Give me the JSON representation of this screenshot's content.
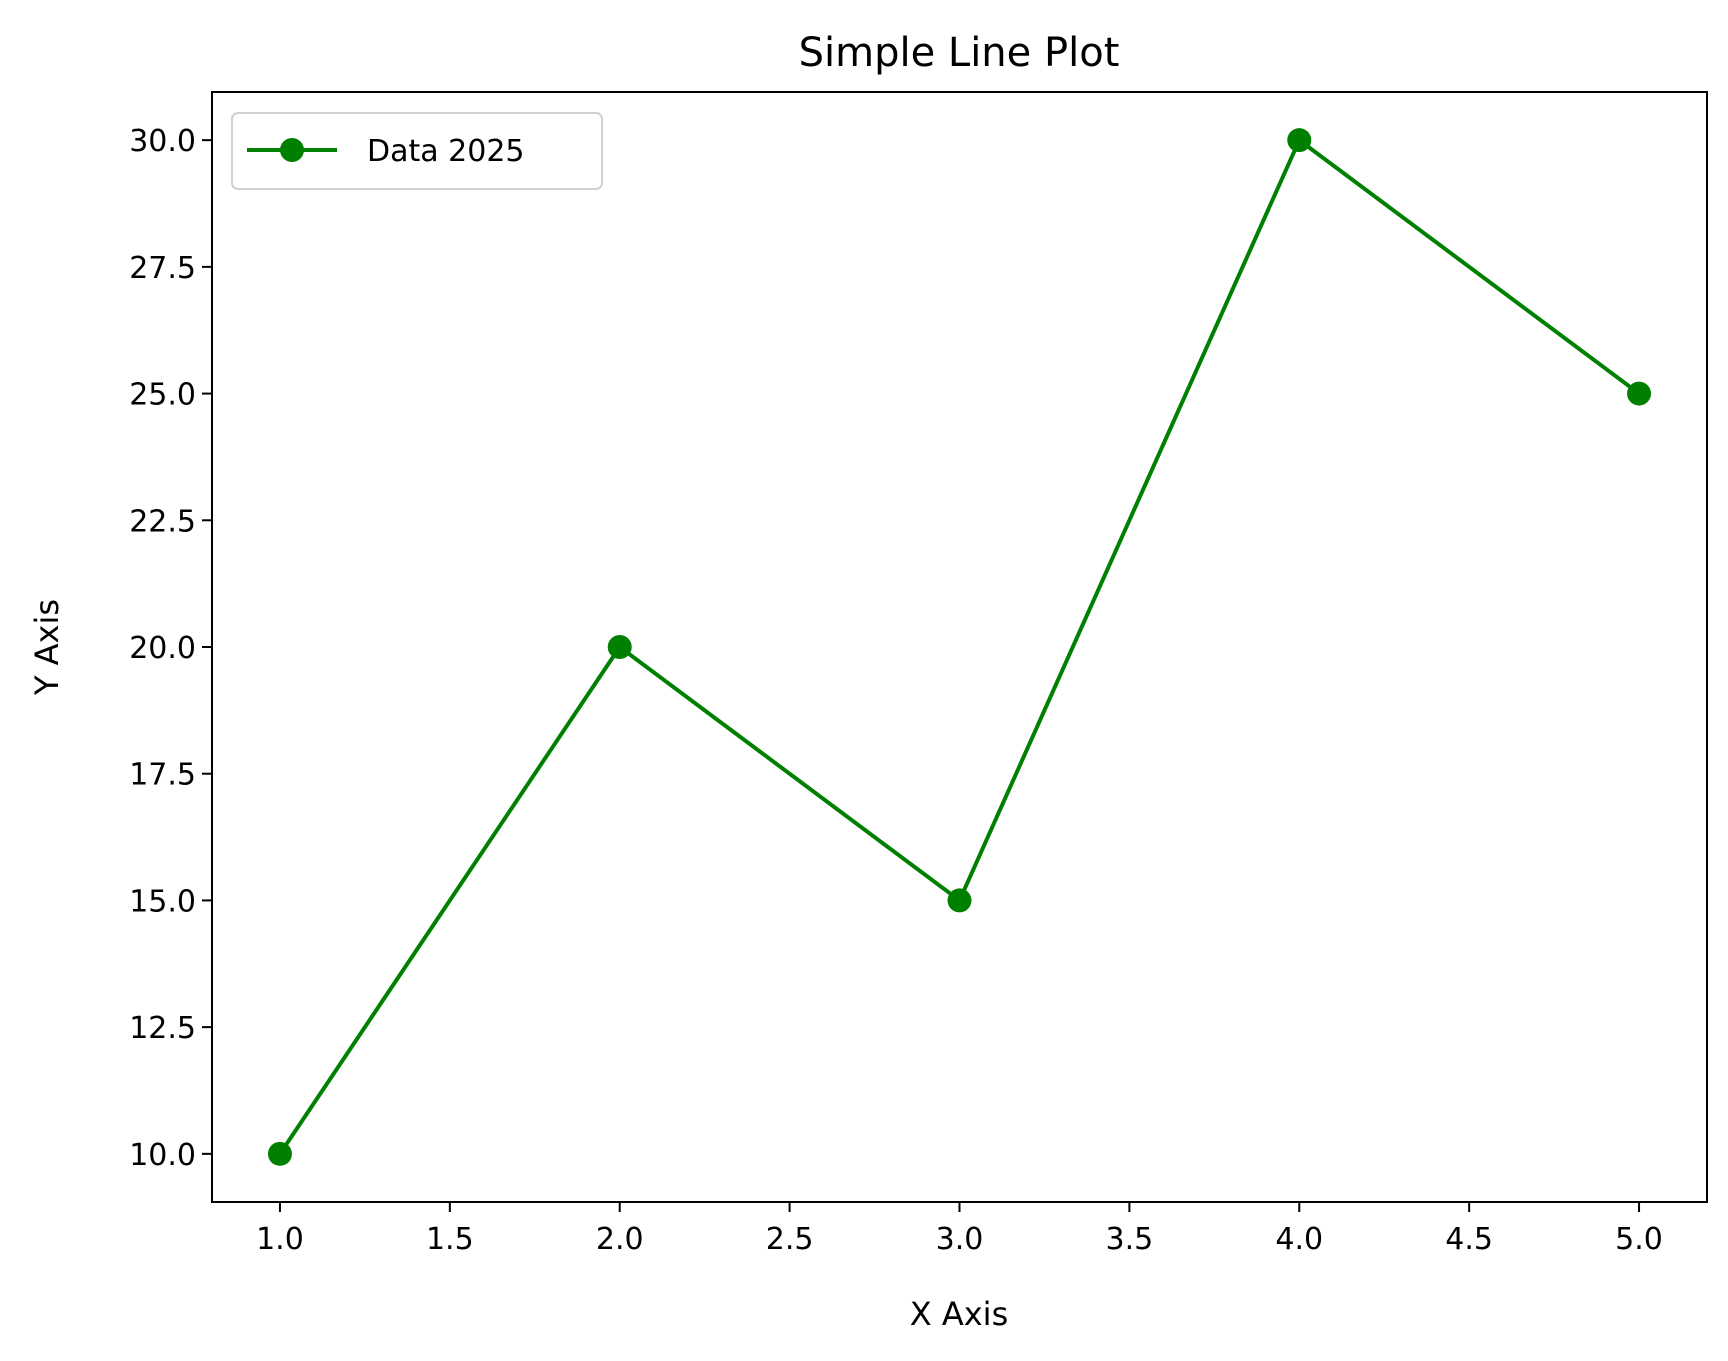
{
  "chart_data": {
    "type": "line",
    "title": "Simple Line Plot",
    "xlabel": "X Axis",
    "ylabel": "Y Axis",
    "xlim": [
      0.8,
      5.2
    ],
    "ylim": [
      9.05,
      30.95
    ],
    "grid": false,
    "legend": "top-left",
    "series": [
      {
        "name": "Data 2025",
        "color": "#008000",
        "marker": "circle",
        "x": [
          1,
          2,
          3,
          4,
          5
        ],
        "y": [
          10,
          20,
          15,
          30,
          25
        ]
      }
    ],
    "x_ticks": [
      1.0,
      1.5,
      2.0,
      2.5,
      3.0,
      3.5,
      4.0,
      4.5,
      5.0
    ],
    "x_tick_labels": [
      "1.0",
      "1.5",
      "2.0",
      "2.5",
      "3.0",
      "3.5",
      "4.0",
      "4.5",
      "5.0"
    ],
    "y_ticks": [
      10.0,
      12.5,
      15.0,
      17.5,
      20.0,
      22.5,
      25.0,
      27.5,
      30.0
    ],
    "y_tick_labels": [
      "10.0",
      "12.5",
      "15.0",
      "17.5",
      "20.0",
      "22.5",
      "25.0",
      "27.5",
      "30.0"
    ]
  }
}
